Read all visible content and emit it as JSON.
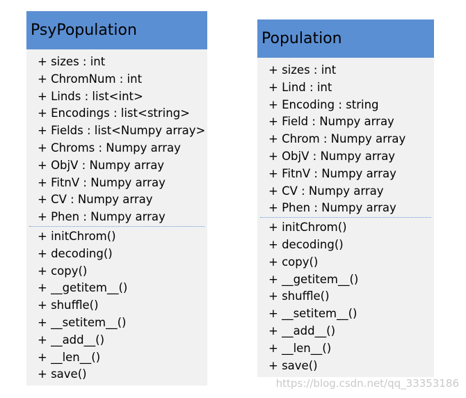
{
  "classes": [
    {
      "name": "PsyPopulation",
      "attributes": [
        "+ sizes : int",
        "+ ChromNum : int",
        "+ Linds : list<int>",
        "+ Encodings : list<string>",
        "+ Fields : list<Numpy array>",
        "+ Chroms : Numpy array",
        "+ ObjV : Numpy array",
        "+ FitnV : Numpy array",
        "+ CV : Numpy array",
        "+ Phen : Numpy array"
      ],
      "methods": [
        "+ initChrom()",
        "+ decoding()",
        "+ copy()",
        "+ __getitem__()",
        "+ shuffle()",
        "+ __setitem__()",
        "+ __add__()",
        "+ __len__()",
        "+ save()"
      ]
    },
    {
      "name": "Population",
      "attributes": [
        "+ sizes : int",
        "+ Lind : int",
        "+ Encoding : string",
        "+ Field : Numpy array",
        "+ Chrom : Numpy array",
        "+ ObjV : Numpy array",
        "+ FitnV : Numpy array",
        "+ CV : Numpy array",
        "+ Phen : Numpy array"
      ],
      "methods": [
        "+ initChrom()",
        "+ decoding()",
        "+ copy()",
        "+ __getitem__()",
        "+ shuffle()",
        "+ __setitem__()",
        "+ __add__()",
        "+ __len__()",
        "+ save()"
      ]
    }
  ],
  "watermark": "https://blog.csdn.net/qq_33353186",
  "colors": {
    "header": "#5b8fd3",
    "body": "#f1f1f1",
    "divider": "#6a9ad6"
  }
}
